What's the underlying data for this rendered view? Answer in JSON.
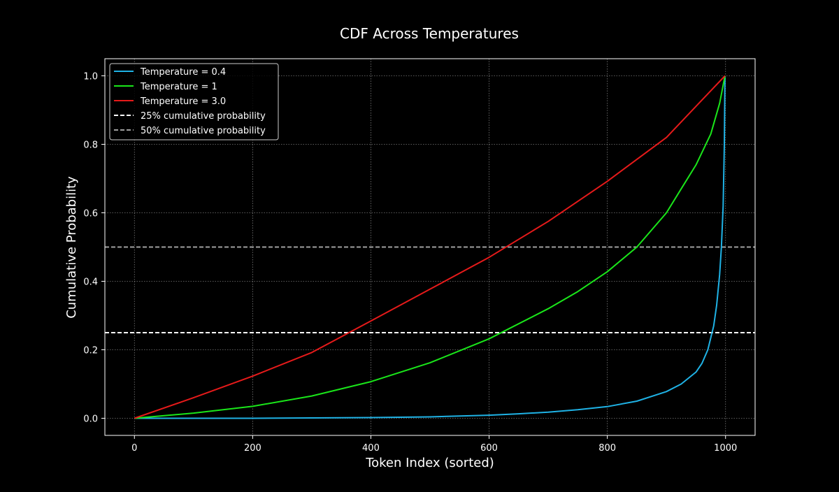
{
  "chart_data": {
    "type": "line",
    "title": "CDF Across Temperatures",
    "xlabel": "Token Index (sorted)",
    "ylabel": "Cumulative Probability",
    "xlim": [
      -50,
      1050
    ],
    "ylim": [
      -0.05,
      1.05
    ],
    "xticks": [
      0,
      200,
      400,
      600,
      800,
      1000
    ],
    "xtick_labels": [
      "0",
      "200",
      "400",
      "600",
      "800",
      "1000"
    ],
    "yticks": [
      0.0,
      0.2,
      0.4,
      0.6,
      0.8,
      1.0
    ],
    "ytick_labels": [
      "0.0",
      "0.2",
      "0.4",
      "0.6",
      "0.8",
      "1.0"
    ],
    "grid": true,
    "legend_position": "top-left",
    "series": [
      {
        "name": "Temperature = 0.4",
        "color": "#1fb2e5",
        "style": "solid",
        "x": [
          0,
          100,
          200,
          300,
          400,
          500,
          600,
          650,
          700,
          750,
          800,
          850,
          900,
          925,
          950,
          960,
          970,
          980,
          985,
          990,
          993,
          996,
          998,
          999
        ],
        "y": [
          0.0,
          0.0,
          0.0,
          0.001,
          0.002,
          0.004,
          0.009,
          0.013,
          0.018,
          0.025,
          0.034,
          0.05,
          0.078,
          0.1,
          0.135,
          0.16,
          0.2,
          0.27,
          0.33,
          0.42,
          0.5,
          0.62,
          0.8,
          1.0
        ]
      },
      {
        "name": "Temperature = 1",
        "color": "#1ae61a",
        "style": "solid",
        "x": [
          0,
          100,
          200,
          300,
          400,
          500,
          600,
          700,
          750,
          800,
          850,
          900,
          925,
          950,
          975,
          990,
          999
        ],
        "y": [
          0.0,
          0.015,
          0.035,
          0.065,
          0.107,
          0.162,
          0.232,
          0.32,
          0.37,
          0.428,
          0.5,
          0.6,
          0.67,
          0.74,
          0.83,
          0.92,
          1.0
        ]
      },
      {
        "name": "Temperature = 3.0",
        "color": "#e61a1a",
        "style": "solid",
        "x": [
          0,
          100,
          200,
          300,
          400,
          500,
          600,
          700,
          800,
          900,
          999
        ],
        "y": [
          0.0,
          0.06,
          0.123,
          0.192,
          0.284,
          0.377,
          0.47,
          0.575,
          0.692,
          0.82,
          1.0
        ]
      }
    ],
    "hlines": [
      {
        "name": "25% cumulative probability",
        "y": 0.25,
        "color": "#ffffff",
        "style": "dashed"
      },
      {
        "name": "50% cumulative probability",
        "y": 0.5,
        "color": "#a0a0a0",
        "style": "dashed"
      }
    ]
  }
}
